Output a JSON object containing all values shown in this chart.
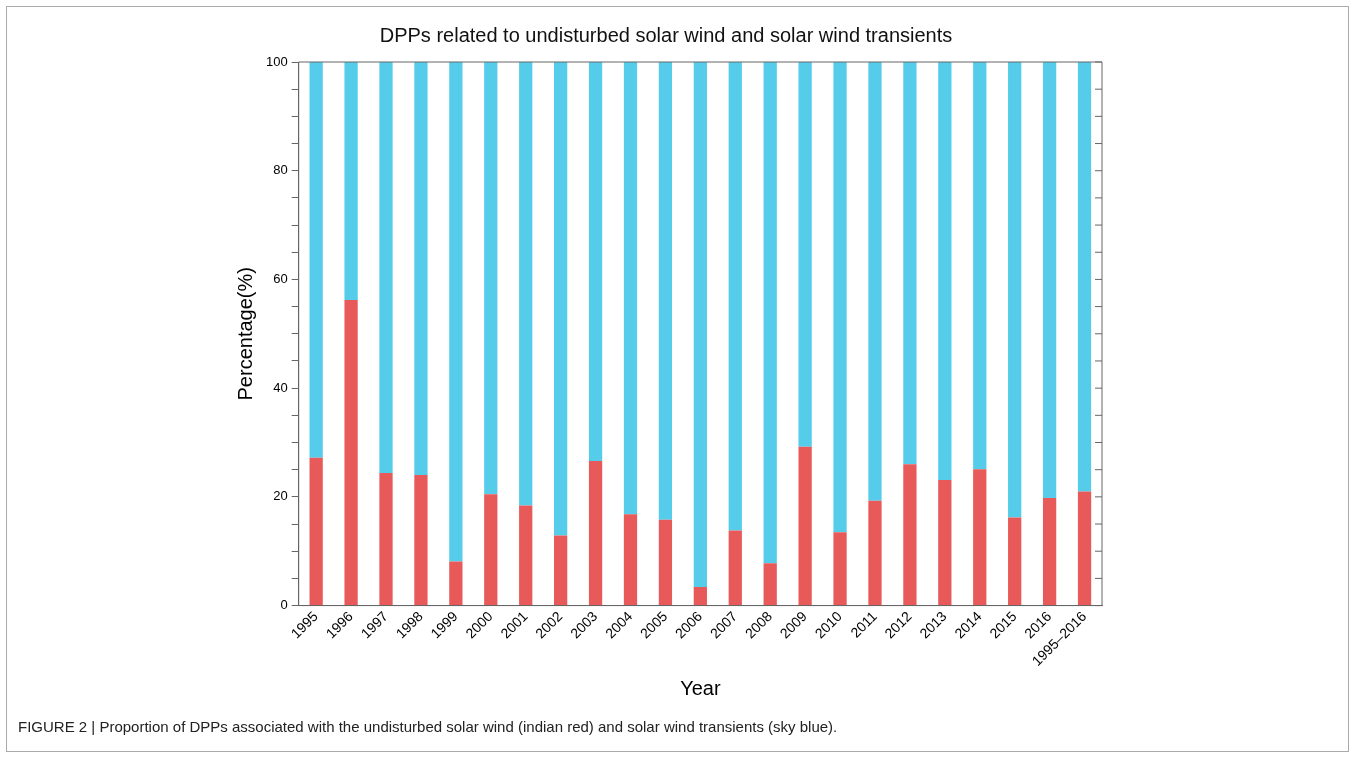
{
  "chart_data": {
    "type": "bar",
    "title": "DPPs related to undisturbed solar wind and solar wind transients",
    "xlabel": "Year",
    "ylabel": "Percentage(%)",
    "categories": [
      "1995",
      "1996",
      "1997",
      "1998",
      "1999",
      "2000",
      "2001",
      "2002",
      "2003",
      "2004",
      "2005",
      "2006",
      "2007",
      "2008",
      "2009",
      "2010",
      "2011",
      "2012",
      "2013",
      "2014",
      "2015",
      "2016",
      "1995–2016"
    ],
    "series": [
      {
        "color": "#e85a5a",
        "values": [
          27.2,
          56.2,
          24.4,
          24.0,
          8.1,
          20.5,
          18.4,
          12.9,
          26.6,
          16.8,
          15.8,
          3.4,
          13.8,
          7.8,
          29.2,
          13.5,
          19.3,
          26.0,
          23.1,
          25.1,
          16.2,
          19.8,
          21.0
        ]
      },
      {
        "color": "#55cdea",
        "values": [
          72.8,
          43.8,
          75.6,
          76.0,
          91.9,
          79.5,
          81.6,
          87.1,
          73.4,
          83.2,
          84.2,
          96.6,
          86.2,
          92.2,
          70.8,
          86.5,
          80.7,
          74.0,
          76.9,
          74.9,
          83.8,
          80.2,
          79.0
        ]
      }
    ],
    "stacked": true,
    "ylim": [
      0,
      100
    ],
    "yticks": [
      0,
      {
        "value": 5,
        "label": null
      },
      {
        "value": 10,
        "label": null
      },
      {
        "value": 15,
        "label": null
      },
      20,
      {
        "value": 25,
        "label": null
      },
      {
        "value": 30,
        "label": null
      },
      {
        "value": 35,
        "label": null
      },
      40,
      {
        "value": 45,
        "label": null
      },
      {
        "value": 50,
        "label": null
      },
      {
        "value": 55,
        "label": null
      },
      60,
      {
        "value": 65,
        "label": null
      },
      {
        "value": 70,
        "label": null
      },
      {
        "value": 75,
        "label": null
      },
      80,
      {
        "value": 85,
        "label": null
      },
      {
        "value": 90,
        "label": null
      },
      {
        "value": 95,
        "label": null
      },
      100
    ],
    "grid": false,
    "legend": false,
    "annotations": [
      "FIGURE 2 | Proportion of DPPs associated with the undisturbed solar wind (indian red) and solar wind transients (sky blue)."
    ]
  }
}
